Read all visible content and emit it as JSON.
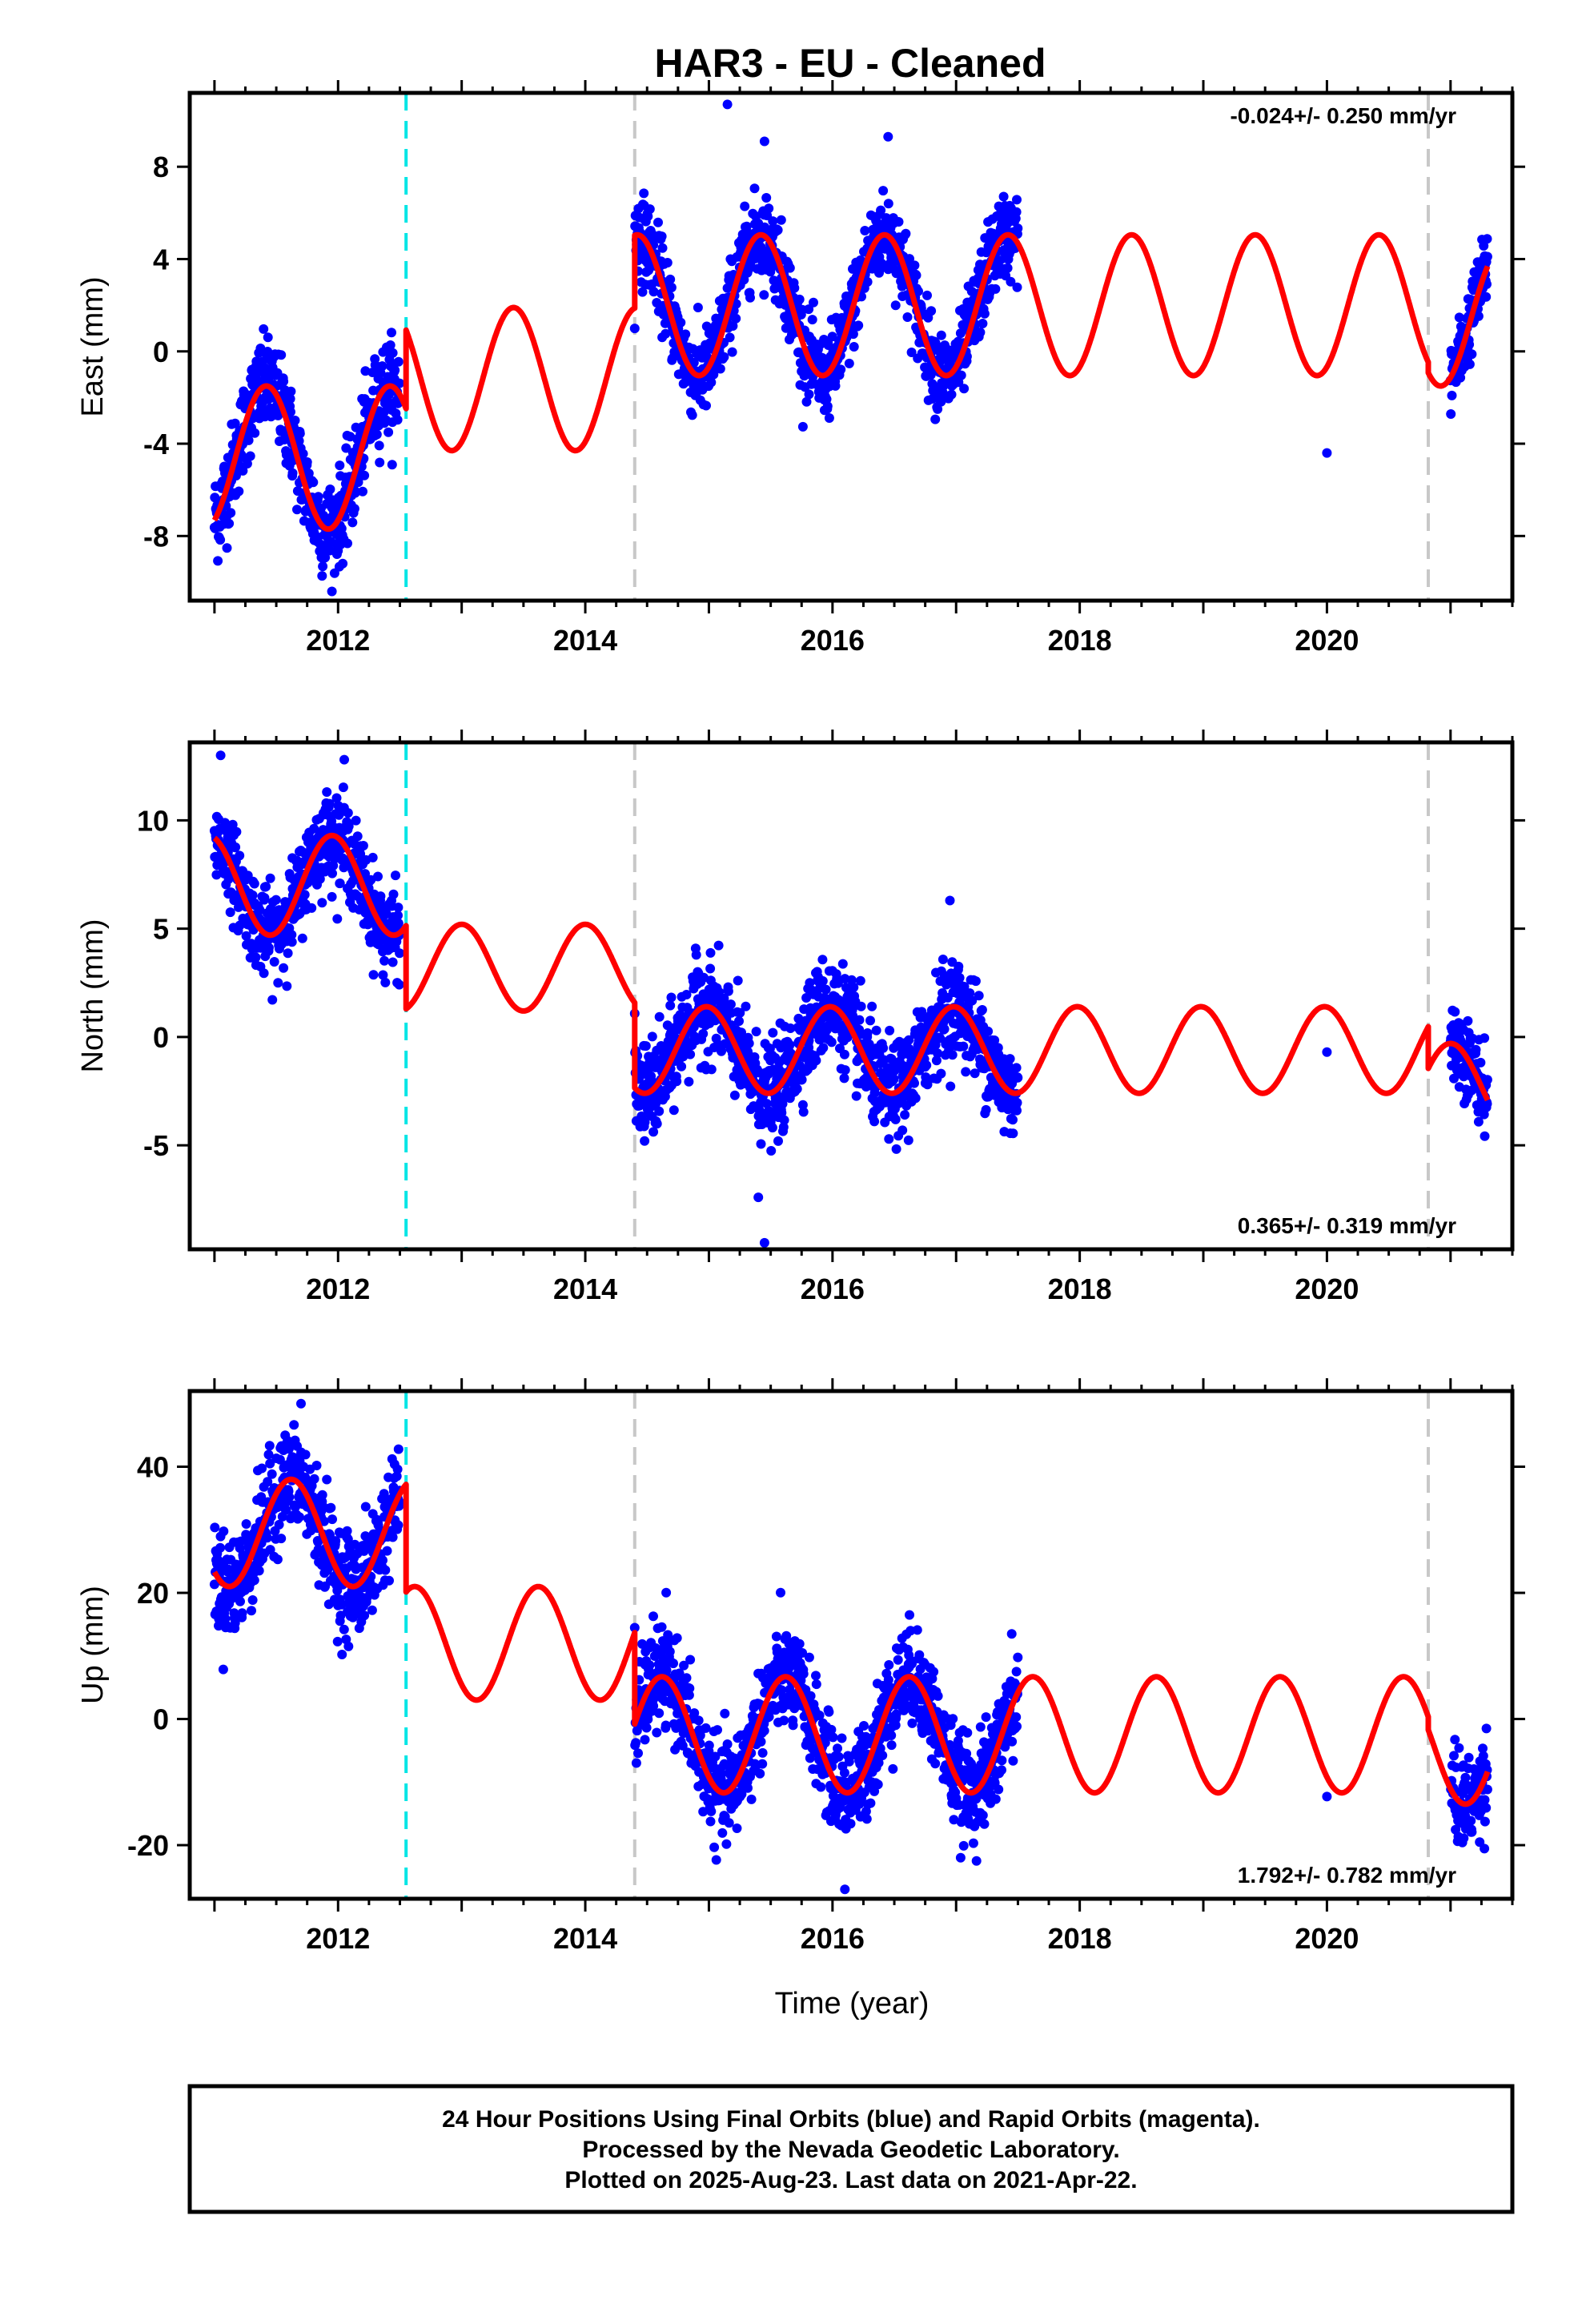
{
  "figure": {
    "title": "HAR3  - EU - Cleaned",
    "xlabel": "Time (year)",
    "footer": [
      "24 Hour Positions Using Final Orbits (blue) and Rapid Orbits (magenta).",
      "Processed by the Nevada Geodetic Laboratory.",
      "Plotted on 2025-Aug-23. Last data on 2021-Apr-22."
    ]
  },
  "colors": {
    "data_points": "#0000ff",
    "model_fit": "#ff0000",
    "antenna_change": "#00e5e5",
    "equipment_change": "#c8c8c8",
    "frame": "#000000"
  },
  "chart_data": [
    {
      "type": "scatter",
      "component": "east",
      "ylabel": "East (mm)",
      "rate_text": "-0.024+/- 0.250 mm/yr",
      "rate_position": "top-right",
      "xlim": [
        2010.8,
        2021.5
      ],
      "ylim": [
        -10.8,
        11.2
      ],
      "x_ticks": [
        2012,
        2014,
        2016,
        2018,
        2020
      ],
      "y_ticks": [
        -8,
        -4,
        0,
        4,
        8
      ],
      "vertical_markers": [
        {
          "x": 2012.55,
          "kind": "antenna_change"
        },
        {
          "x": 2014.4,
          "kind": "equipment_change"
        },
        {
          "x": 2020.82,
          "kind": "equipment_change"
        }
      ],
      "model_segments": [
        {
          "x_start": 2011.0,
          "x_end": 2012.55,
          "mean": -4.6,
          "amplitude": 3.1,
          "peak": 2011.42
        },
        {
          "x_start": 2012.55,
          "x_end": 2014.4,
          "mean": -1.2,
          "amplitude": 3.1,
          "peak": 2013.42
        },
        {
          "x_start": 2014.4,
          "x_end": 2020.82,
          "mean": 2.0,
          "amplitude": 3.05,
          "peak": 2015.42
        },
        {
          "x_start": 2020.82,
          "x_end": 2021.3,
          "mean": 1.5,
          "amplitude": 3.0,
          "peak": 2021.42
        }
      ],
      "observation_periods": [
        {
          "x_start": 2011.0,
          "x_end": 2012.5,
          "scatter": 1.0
        },
        {
          "x_start": 2014.4,
          "x_end": 2017.5,
          "scatter": 0.9
        },
        {
          "x_start": 2021.0,
          "x_end": 2021.3,
          "scatter": 0.8
        }
      ],
      "outliers": [
        [
          2015.15,
          10.7
        ],
        [
          2015.45,
          9.1
        ],
        [
          2020.0,
          -4.4
        ],
        [
          2016.45,
          9.3
        ],
        [
          2011.95,
          -10.4
        ]
      ]
    },
    {
      "type": "scatter",
      "component": "north",
      "ylabel": "North (mm)",
      "rate_text": "0.365+/- 0.319 mm/yr",
      "rate_position": "bottom-right",
      "xlim": [
        2010.8,
        2021.5
      ],
      "ylim": [
        -9.8,
        13.6
      ],
      "x_ticks": [
        2012,
        2014,
        2016,
        2018,
        2020
      ],
      "y_ticks": [
        -5,
        0,
        5,
        10
      ],
      "vertical_markers": [
        {
          "x": 2012.55,
          "kind": "antenna_change"
        },
        {
          "x": 2014.4,
          "kind": "equipment_change"
        },
        {
          "x": 2020.82,
          "kind": "equipment_change"
        }
      ],
      "model_segments": [
        {
          "x_start": 2011.0,
          "x_end": 2012.55,
          "mean": 7.0,
          "amplitude": 2.3,
          "peak": 2011.95
        },
        {
          "x_start": 2012.55,
          "x_end": 2014.4,
          "mean": 3.2,
          "amplitude": 2.0,
          "peak": 2013.0
        },
        {
          "x_start": 2014.4,
          "x_end": 2020.82,
          "mean": -0.6,
          "amplitude": 2.0,
          "peak": 2014.98
        },
        {
          "x_start": 2020.82,
          "x_end": 2021.3,
          "mean": -2.3,
          "amplitude": 2.0,
          "peak": 2021.0
        }
      ],
      "observation_periods": [
        {
          "x_start": 2011.0,
          "x_end": 2012.5,
          "scatter": 1.0
        },
        {
          "x_start": 2014.4,
          "x_end": 2017.5,
          "scatter": 1.1
        },
        {
          "x_start": 2021.0,
          "x_end": 2021.3,
          "scatter": 0.9
        }
      ],
      "outliers": [
        [
          2011.05,
          13.0
        ],
        [
          2012.05,
          12.8
        ],
        [
          2015.45,
          -9.5
        ],
        [
          2015.4,
          -7.4
        ],
        [
          2016.95,
          6.3
        ],
        [
          2020.0,
          -0.7
        ]
      ]
    },
    {
      "type": "scatter",
      "component": "up",
      "ylabel": "Up (mm)",
      "rate_text": "1.792+/- 0.782 mm/yr",
      "rate_position": "bottom-right",
      "xlim": [
        2010.8,
        2021.5
      ],
      "ylim": [
        -28.5,
        52
      ],
      "x_ticks": [
        2012,
        2014,
        2016,
        2018,
        2020
      ],
      "y_ticks": [
        -20,
        0,
        20,
        40
      ],
      "vertical_markers": [
        {
          "x": 2012.55,
          "kind": "antenna_change"
        },
        {
          "x": 2014.4,
          "kind": "equipment_change"
        },
        {
          "x": 2020.82,
          "kind": "equipment_change"
        }
      ],
      "model_segments": [
        {
          "x_start": 2011.0,
          "x_end": 2012.55,
          "mean": 29.5,
          "amplitude": 8.5,
          "peak": 2011.62
        },
        {
          "x_start": 2012.55,
          "x_end": 2014.4,
          "mean": 12.0,
          "amplitude": 9.0,
          "peak": 2013.62
        },
        {
          "x_start": 2014.4,
          "x_end": 2020.82,
          "mean": -2.5,
          "amplitude": 9.2,
          "peak": 2015.62
        },
        {
          "x_start": 2020.82,
          "x_end": 2021.3,
          "mean": -4.5,
          "amplitude": 9.0,
          "peak": 2021.62
        }
      ],
      "observation_periods": [
        {
          "x_start": 2011.0,
          "x_end": 2012.5,
          "scatter": 4.0
        },
        {
          "x_start": 2014.4,
          "x_end": 2017.5,
          "scatter": 3.8
        },
        {
          "x_start": 2021.0,
          "x_end": 2021.3,
          "scatter": 3.5
        }
      ],
      "outliers": [
        [
          2011.7,
          50.0
        ],
        [
          2016.1,
          -27.0
        ],
        [
          2020.0,
          -12.3
        ],
        [
          2014.55,
          16.3
        ],
        [
          2017.45,
          13.5
        ]
      ]
    }
  ]
}
